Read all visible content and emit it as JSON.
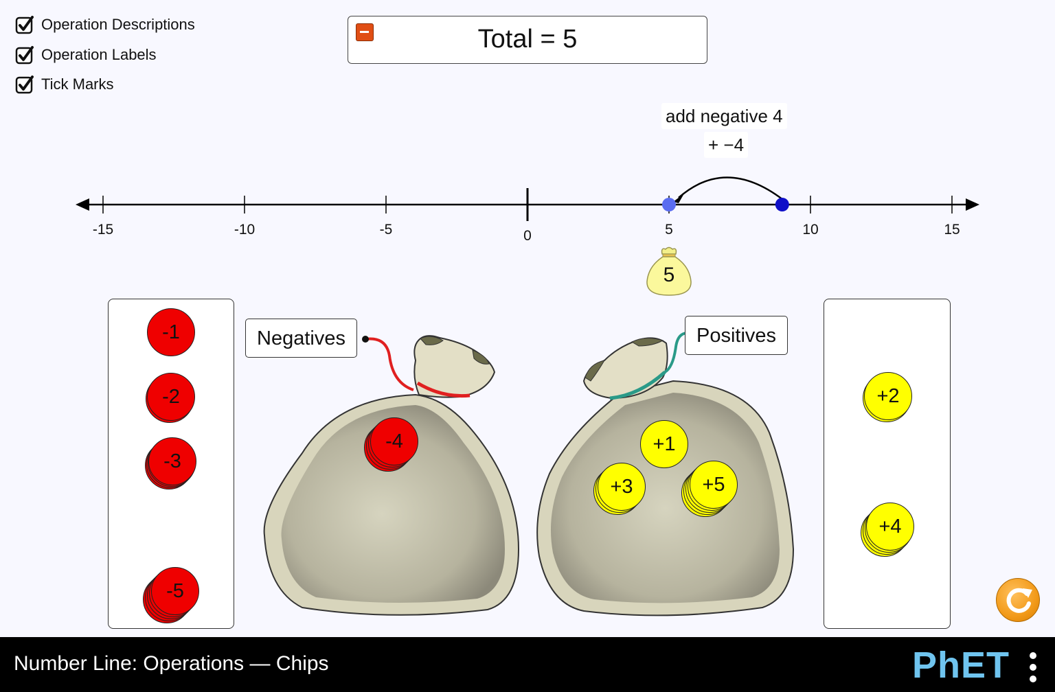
{
  "checkboxes": [
    {
      "label": "Operation Descriptions",
      "checked": true
    },
    {
      "label": "Operation Labels",
      "checked": true
    },
    {
      "label": "Tick Marks",
      "checked": true
    }
  ],
  "total": {
    "text": "Total = 5"
  },
  "operation": {
    "description": "add negative 4",
    "label": "+ −4"
  },
  "number_line": {
    "range": [
      -16,
      16
    ],
    "tick_labels": [
      "-15",
      "-10",
      "-5",
      "0",
      "5",
      "10",
      "15"
    ],
    "start_value": 9,
    "end_value": 5
  },
  "net_worth_bag": {
    "value": "5"
  },
  "bag_labels": {
    "negatives": "Negatives",
    "positives": "Positives"
  },
  "negative_box_chips": [
    "-1",
    "-2",
    "-3",
    "-5"
  ],
  "negative_bag_chips": [
    "-4"
  ],
  "positive_bag_chips": [
    "+1",
    "+3",
    "+5"
  ],
  "positive_box_chips": [
    "+2",
    "+4"
  ],
  "colors": {
    "negative_chip": "#ef0000",
    "positive_chip": "#ffff00",
    "start_point": "#1010c8",
    "end_point": "#5a6cf0",
    "accent": "#f29a19"
  },
  "icons": {
    "reset": "reset-icon",
    "checkbox": "checkmark-icon",
    "collapse": "minus-icon"
  },
  "navbar": {
    "title": "Number Line: Operations — Chips",
    "logo": "PhET"
  }
}
